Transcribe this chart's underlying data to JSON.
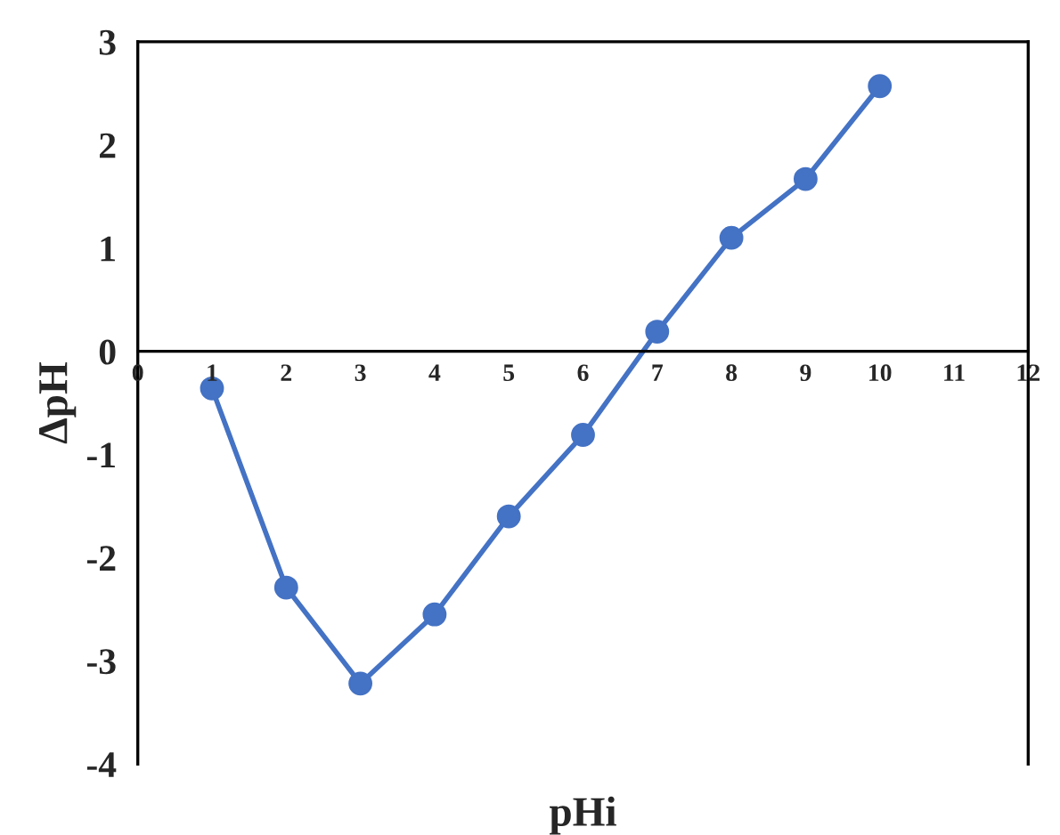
{
  "chart_data": {
    "type": "line",
    "xlabel": "pHi",
    "ylabel": "ΔpH",
    "x": [
      1,
      2,
      3,
      4,
      5,
      6,
      7,
      8,
      9,
      10
    ],
    "series": [
      {
        "color": "#4472c4",
        "values": [
          -0.36,
          -2.29,
          -3.22,
          -2.55,
          -1.6,
          -0.81,
          0.19,
          1.1,
          1.67,
          2.57
        ]
      }
    ],
    "xlim": [
      0,
      12
    ],
    "xticks": [
      0,
      1,
      2,
      3,
      4,
      5,
      6,
      7,
      8,
      9,
      10,
      11,
      12
    ],
    "ylim": [
      -4,
      3
    ],
    "yticks": [
      -4,
      -3,
      -2,
      -1,
      0,
      1,
      2,
      3
    ],
    "marker": "circle",
    "line_style": "solid",
    "grid": false,
    "legend": false
  }
}
